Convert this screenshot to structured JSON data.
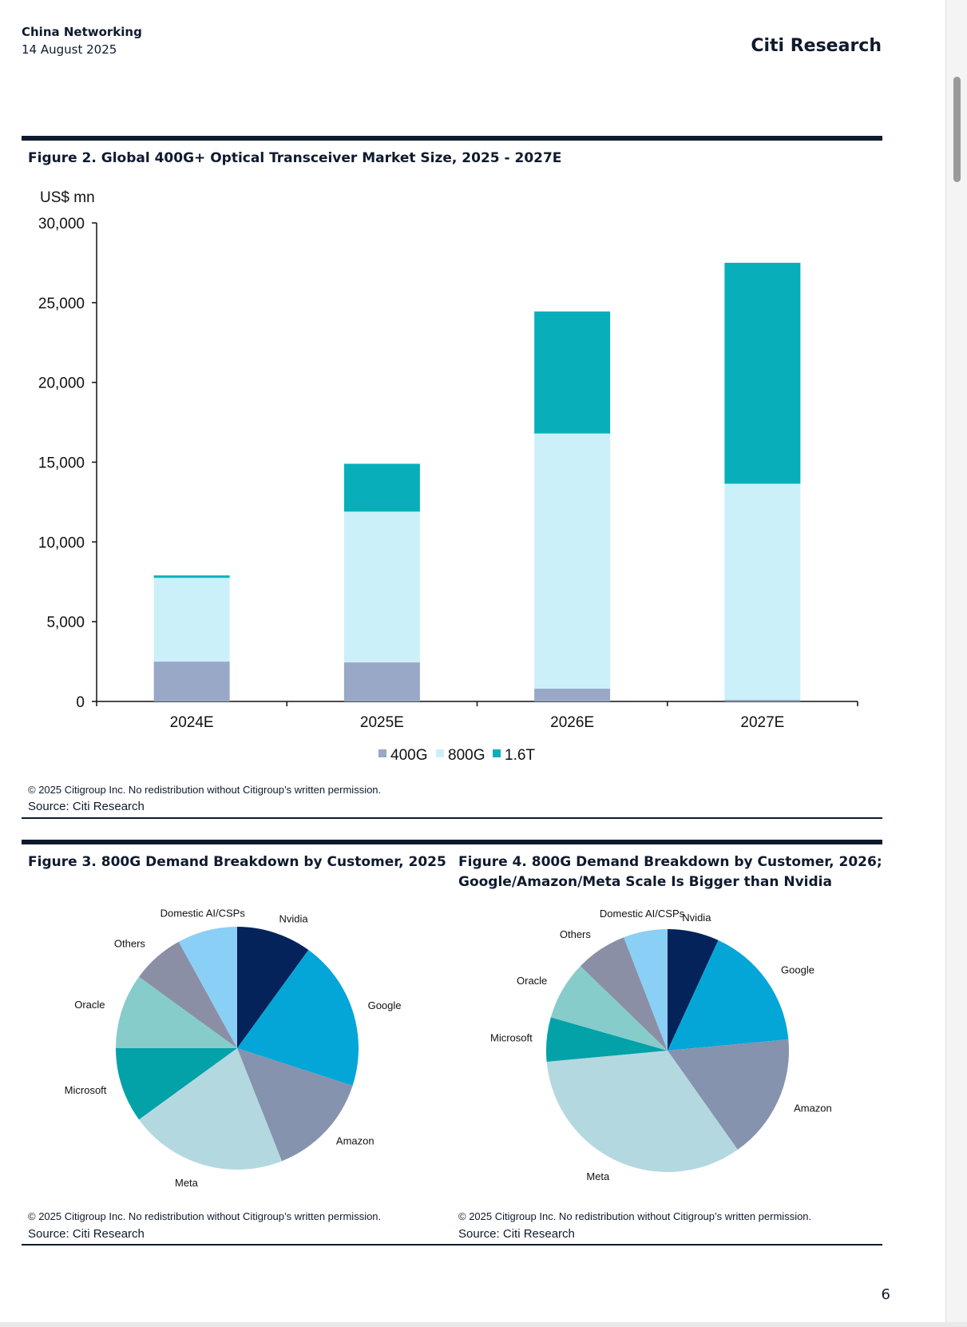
{
  "header": {
    "section": "China Networking",
    "date": "14 August 2025",
    "brand": "Citi Research"
  },
  "page_number": "6",
  "figures": [
    {
      "title": "Figure 2. Global 400G+ Optical Transceiver Market Size, 2025 - 2027E",
      "copyright": "© 2025 Citigroup Inc. No redistribution without Citigroup’s written permission.",
      "source": "Source: Citi Research"
    },
    {
      "title": "Figure 3. 800G Demand Breakdown by Customer, 2025",
      "copyright": "© 2025 Citigroup Inc. No redistribution without Citigroup’s written permission.",
      "source": "Source: Citi Research"
    },
    {
      "title_line1": "Figure 4. 800G Demand Breakdown by Customer, 2026;",
      "title_line2": "Google/Amazon/Meta Scale Is Bigger than Nvidia",
      "copyright": "© 2025 Citigroup Inc. No redistribution without Citigroup’s written permission.",
      "source": "Source: Citi Research"
    }
  ],
  "chart_data": [
    {
      "type": "bar",
      "stacked": true,
      "ylabel": "US$ mn",
      "ylim": [
        0,
        30000
      ],
      "yticks": [
        0,
        5000,
        10000,
        15000,
        20000,
        25000,
        30000
      ],
      "ytick_labels": [
        "0",
        "5,000",
        "10,000",
        "15,000",
        "20,000",
        "25,000",
        "30,000"
      ],
      "categories": [
        "2024E",
        "2025E",
        "2026E",
        "2027E"
      ],
      "series": [
        {
          "name": "400G",
          "color": "#98a8c6",
          "values": [
            2500,
            2450,
            800,
            100
          ]
        },
        {
          "name": "800G",
          "color": "#ccf0fa",
          "values": [
            5250,
            9450,
            16000,
            13550
          ]
        },
        {
          "name": "1.6T",
          "color": "#08afba",
          "values": [
            150,
            3000,
            7650,
            13850
          ]
        }
      ],
      "legend": "bottom-center",
      "grid": false
    },
    {
      "type": "pie",
      "slices": [
        {
          "label": "Nvidia",
          "value": 10,
          "color": "#04235b"
        },
        {
          "label": "Google",
          "value": 20,
          "color": "#04a6d8"
        },
        {
          "label": "Amazon",
          "value": 14,
          "color": "#8593ae"
        },
        {
          "label": "Meta",
          "value": 21,
          "color": "#b4d8e0"
        },
        {
          "label": "Microsoft",
          "value": 10,
          "color": "#03a1a8"
        },
        {
          "label": "Oracle",
          "value": 10,
          "color": "#86cccb"
        },
        {
          "label": "Others",
          "value": 7,
          "color": "#8b8fa6"
        },
        {
          "label": "Domestic AI/CSPs",
          "value": 8,
          "color": "#8acff5"
        }
      ]
    },
    {
      "type": "pie",
      "slices": [
        {
          "label": "Nvidia",
          "value": 7,
          "color": "#04235b"
        },
        {
          "label": "Google",
          "value": 17,
          "color": "#04a6d8"
        },
        {
          "label": "Amazon",
          "value": 17,
          "color": "#8593ae"
        },
        {
          "label": "Meta",
          "value": 34,
          "color": "#b4d8e0"
        },
        {
          "label": "Microsoft",
          "value": 6,
          "color": "#03a1a8"
        },
        {
          "label": "Oracle",
          "value": 8,
          "color": "#86cccb"
        },
        {
          "label": "Others",
          "value": 7,
          "color": "#8b8fa6"
        },
        {
          "label": "Domestic AI/CSPs",
          "value": 6,
          "color": "#8acff5"
        }
      ]
    }
  ]
}
